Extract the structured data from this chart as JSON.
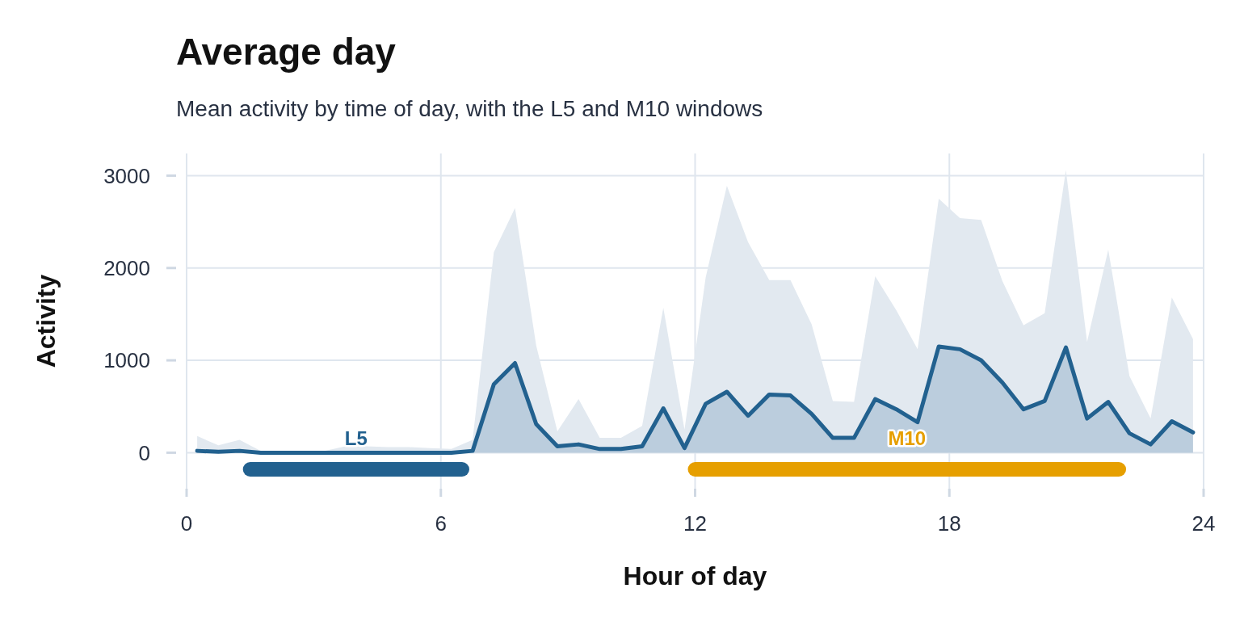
{
  "chart_data": {
    "type": "area",
    "title": "Average day",
    "subtitle": "Mean activity by time of day, with the L5 and M10 windows",
    "xlabel": "Hour of day",
    "ylabel": "Activity",
    "x": [
      0.25,
      0.75,
      1.25,
      1.75,
      2.25,
      2.75,
      3.25,
      3.75,
      4.25,
      4.75,
      5.25,
      5.75,
      6.25,
      6.75,
      7.25,
      7.75,
      8.25,
      8.75,
      9.25,
      9.75,
      10.25,
      10.75,
      11.25,
      11.75,
      12.25,
      12.75,
      13.25,
      13.75,
      14.25,
      14.75,
      15.25,
      15.75,
      16.25,
      16.75,
      17.25,
      17.75,
      18.25,
      18.75,
      19.25,
      19.75,
      20.25,
      20.75,
      21.25,
      21.75,
      22.25,
      22.75,
      23.25,
      23.75
    ],
    "series": [
      {
        "type": "area",
        "color": "#e2e9f0",
        "line_style": "none",
        "values": [
          180,
          80,
          140,
          20,
          10,
          10,
          20,
          70,
          70,
          60,
          60,
          50,
          40,
          140,
          2170,
          2650,
          1160,
          230,
          580,
          160,
          160,
          290,
          1570,
          250,
          1900,
          2890,
          2280,
          1870,
          1870,
          1390,
          560,
          550,
          1910,
          1540,
          1120,
          2750,
          2540,
          2520,
          1860,
          1380,
          1510,
          3060,
          1200,
          2200,
          830,
          370,
          1680,
          1230
        ]
      },
      {
        "color": "#22618f",
        "values": [
          20,
          10,
          20,
          0,
          0,
          0,
          0,
          0,
          0,
          0,
          0,
          0,
          0,
          20,
          740,
          970,
          310,
          70,
          90,
          40,
          40,
          70,
          480,
          50,
          530,
          660,
          400,
          630,
          620,
          420,
          160,
          160,
          580,
          470,
          330,
          1150,
          1120,
          1000,
          760,
          470,
          560,
          1140,
          370,
          550,
          210,
          90,
          340,
          220
        ]
      },
      {
        "type": "line",
        "name": "L5",
        "color": "#22618f",
        "x": [
          1.5,
          6.5
        ],
        "values": [
          -180,
          -180
        ]
      },
      {
        "type": "line",
        "name": "M10",
        "color": "#e69f00",
        "x": [
          12,
          22
        ],
        "values": [
          -180,
          -180
        ]
      }
    ],
    "xlim": [
      0,
      24
    ],
    "ylim": [
      -390,
      3240
    ],
    "xticks": [
      0,
      6,
      12,
      18,
      24
    ],
    "yticks": [
      0,
      1000,
      2000,
      3000
    ],
    "grid": true
  }
}
